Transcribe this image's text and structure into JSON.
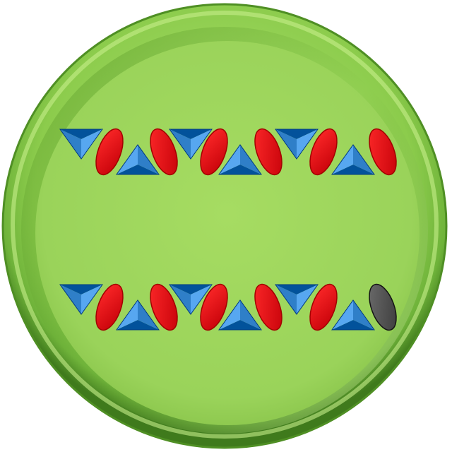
{
  "dish": {
    "rim_color": "#6fb33a",
    "floor_color": "#9ed65c",
    "highlight_color": "#c6ef8a",
    "shadow_color": "#3f7a1c"
  },
  "rows": [
    {
      "name": "top-row",
      "items": [
        {
          "shape": "triangle",
          "orientation": "down",
          "color": "#2f7fc8"
        },
        {
          "shape": "oval",
          "orientation": "tilt-right",
          "color": "#e8000a"
        },
        {
          "shape": "triangle",
          "orientation": "up",
          "color": "#2f7fc8"
        },
        {
          "shape": "oval",
          "orientation": "tilt-left",
          "color": "#e8000a"
        },
        {
          "shape": "triangle",
          "orientation": "down",
          "color": "#2f7fc8"
        },
        {
          "shape": "oval",
          "orientation": "tilt-right",
          "color": "#e8000a"
        },
        {
          "shape": "triangle",
          "orientation": "up",
          "color": "#2f7fc8"
        },
        {
          "shape": "oval",
          "orientation": "tilt-left",
          "color": "#e8000a"
        },
        {
          "shape": "triangle",
          "orientation": "down",
          "color": "#2f7fc8"
        },
        {
          "shape": "oval",
          "orientation": "tilt-right",
          "color": "#e8000a"
        },
        {
          "shape": "triangle",
          "orientation": "up",
          "color": "#2f7fc8"
        },
        {
          "shape": "oval",
          "orientation": "tilt-left",
          "color": "#e8000a"
        }
      ]
    },
    {
      "name": "bottom-row",
      "items": [
        {
          "shape": "triangle",
          "orientation": "down",
          "color": "#2f7fc8"
        },
        {
          "shape": "oval",
          "orientation": "tilt-right",
          "color": "#e8000a"
        },
        {
          "shape": "triangle",
          "orientation": "up",
          "color": "#2f7fc8"
        },
        {
          "shape": "oval",
          "orientation": "tilt-left",
          "color": "#e8000a"
        },
        {
          "shape": "triangle",
          "orientation": "down",
          "color": "#2f7fc8"
        },
        {
          "shape": "oval",
          "orientation": "tilt-right",
          "color": "#e8000a"
        },
        {
          "shape": "triangle",
          "orientation": "up",
          "color": "#2f7fc8"
        },
        {
          "shape": "oval",
          "orientation": "tilt-left",
          "color": "#e8000a"
        },
        {
          "shape": "triangle",
          "orientation": "down",
          "color": "#2f7fc8"
        },
        {
          "shape": "oval",
          "orientation": "tilt-right",
          "color": "#e8000a"
        },
        {
          "shape": "triangle",
          "orientation": "up",
          "color": "#2f7fc8"
        },
        {
          "shape": "oval",
          "orientation": "tilt-left",
          "color": "#5a5a5a"
        }
      ]
    }
  ]
}
